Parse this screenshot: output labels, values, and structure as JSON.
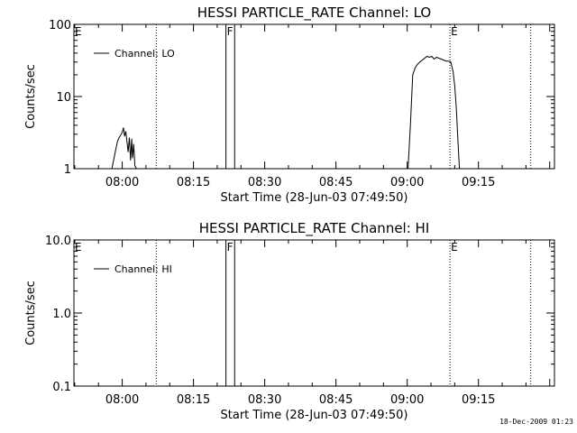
{
  "footer": "18-Dec-2009 01:23",
  "chart_data": [
    {
      "type": "line",
      "title": "HESSI PARTICLE_RATE Channel: LO",
      "xlabel": "Start Time (28-Jun-03 07:49:50)",
      "ylabel": "Counts/sec",
      "yscale": "log",
      "ylim": [
        1,
        100
      ],
      "y_ticks": [
        {
          "v": 1,
          "label": "1"
        },
        {
          "v": 10,
          "label": "10"
        },
        {
          "v": 100,
          "label": "100"
        }
      ],
      "xlim": [
        "07:49:50",
        "09:31:00"
      ],
      "x_ticks": [
        "08:00",
        "08:15",
        "08:30",
        "08:45",
        "09:00",
        "09:15"
      ],
      "legend": {
        "position": "top-left",
        "entries": [
          "Channel: LO"
        ]
      },
      "markers": [
        {
          "label": "E",
          "time": "07:49:50",
          "style": "none"
        },
        {
          "label": "",
          "time": "08:07:10",
          "style": "dotted"
        },
        {
          "label": "F",
          "time": "08:21:50",
          "style": "solid"
        },
        {
          "label": "",
          "time": "08:23:40",
          "style": "solid"
        },
        {
          "label": "E",
          "time": "09:09:00",
          "style": "dotted"
        },
        {
          "label": "",
          "time": "09:26:00",
          "style": "dotted"
        }
      ],
      "series": [
        {
          "segments": [
            {
              "x": [
                "07:57:50",
                "07:58:45",
                "07:59:00",
                "07:59:20",
                "07:59:40",
                "08:00:00",
                "08:00:15",
                "08:00:30",
                "08:00:45",
                "08:01:00",
                "08:01:15",
                "08:01:30",
                "08:01:45",
                "08:02:00",
                "08:02:10",
                "08:02:25",
                "08:02:40",
                "08:03:00"
              ],
              "y": [
                1.0,
                2.0,
                2.4,
                2.7,
                2.9,
                3.2,
                3.7,
                2.8,
                3.3,
                2.4,
                1.7,
                2.7,
                1.3,
                2.6,
                1.4,
                2.2,
                1.1,
                1.0
              ]
            },
            {
              "x": [
                "09:00:10",
                "09:00:40",
                "09:01:10",
                "09:01:40",
                "09:02:10",
                "09:02:40",
                "09:03:10",
                "09:03:40",
                "09:04:10",
                "09:04:40",
                "09:05:10",
                "09:05:40",
                "09:06:10",
                "09:06:40",
                "09:07:10",
                "09:07:40",
                "09:08:10",
                "09:08:40",
                "09:09:10",
                "09:09:40",
                "09:10:00",
                "09:10:20",
                "09:10:40",
                "09:11:00"
              ],
              "y": [
                1.0,
                4.0,
                20,
                25,
                28,
                30,
                32,
                34,
                36,
                35,
                36,
                33,
                35,
                34,
                33,
                32,
                31,
                31,
                30,
                22,
                14,
                7,
                2.5,
                1.0
              ]
            }
          ]
        }
      ]
    },
    {
      "type": "line",
      "title": "HESSI PARTICLE_RATE Channel: HI",
      "xlabel": "Start Time (28-Jun-03 07:49:50)",
      "ylabel": "Counts/sec",
      "yscale": "log",
      "ylim": [
        0.1,
        10
      ],
      "y_ticks": [
        {
          "v": 0.1,
          "label": "0.1"
        },
        {
          "v": 1,
          "label": "1.0"
        },
        {
          "v": 10,
          "label": "10.0"
        }
      ],
      "xlim": [
        "07:49:50",
        "09:31:00"
      ],
      "x_ticks": [
        "08:00",
        "08:15",
        "08:30",
        "08:45",
        "09:00",
        "09:15"
      ],
      "legend": {
        "position": "top-left",
        "entries": [
          "Channel: HI"
        ]
      },
      "markers": [
        {
          "label": "E",
          "time": "07:49:50",
          "style": "none"
        },
        {
          "label": "",
          "time": "08:07:10",
          "style": "dotted"
        },
        {
          "label": "F",
          "time": "08:21:50",
          "style": "solid"
        },
        {
          "label": "",
          "time": "08:23:40",
          "style": "solid"
        },
        {
          "label": "E",
          "time": "09:09:00",
          "style": "dotted"
        },
        {
          "label": "",
          "time": "09:26:00",
          "style": "dotted"
        }
      ],
      "series": [
        {
          "segments": []
        }
      ]
    }
  ]
}
